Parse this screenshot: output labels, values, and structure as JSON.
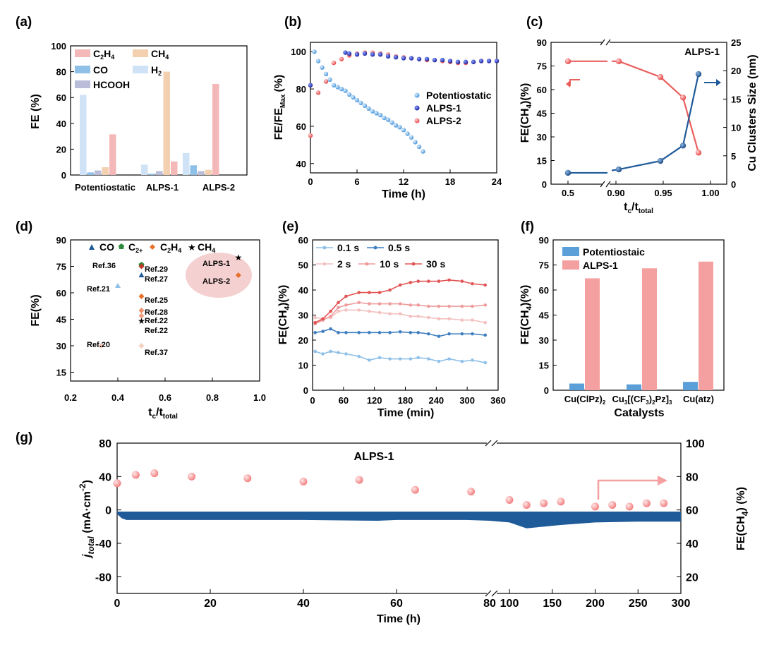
{
  "colors": {
    "pink": "#f5b8b8",
    "peach": "#f3d0b0",
    "blue": "#8fc0e8",
    "lightblue": "#cfe2f6",
    "lavender": "#b9bdd9",
    "red": "#e8605f",
    "darkblue": "#1f5a99",
    "midblue": "#6aa8df",
    "salmon": "#f5a0a0"
  },
  "panels": {
    "a": {
      "label": "(a)",
      "ylabel": "FE (%)",
      "yticks": [
        "0",
        "20",
        "40",
        "60",
        "80",
        "100"
      ],
      "categories": [
        "Potentiostatic",
        "ALPS-1",
        "ALPS-2"
      ],
      "legend": [
        "C",
        "H",
        "CH",
        "CO",
        "H",
        "HCOOH"
      ]
    },
    "b": {
      "label": "(b)",
      "ylabel": "FE/FE",
      "ylabel_sub": "Max",
      "ylabel_unit": "(%)",
      "xlabel": "Time (h)",
      "xticks": [
        "0",
        "6",
        "12",
        "18",
        "24"
      ],
      "yticks": [
        "40",
        "60",
        "80",
        "100"
      ],
      "legend": [
        "Potentiostatic",
        "ALPS-1",
        "ALPS-2"
      ]
    },
    "c": {
      "label": "(c)",
      "title": "ALPS-1",
      "ylabel": "FE(CH",
      "ylabel_end": ")(%)",
      "y2label": "Cu Clusters Size (nm)",
      "xlabel": "t",
      "xlabel_sub1": "c",
      "xlabel_mid": "/t",
      "xlabel_sub2": "total",
      "xticks": [
        "0.5",
        "0.90",
        "0.95",
        "1.00"
      ],
      "yticks": [
        "0",
        "15",
        "30",
        "45",
        "60",
        "75",
        "90"
      ],
      "y2ticks": [
        "0",
        "5",
        "10",
        "15",
        "20",
        "25"
      ]
    },
    "d": {
      "label": "(d)",
      "ylabel": "FE(%)",
      "xlabel": "t",
      "xlabel_sub1": "c",
      "xlabel_mid": "/t",
      "xlabel_sub2": "total",
      "xticks": [
        "0.2",
        "0.4",
        "0.6",
        "0.8",
        "1.0"
      ],
      "yticks": [
        "15",
        "30",
        "45",
        "60",
        "75",
        "90"
      ],
      "legend": [
        "CO",
        "C",
        "C",
        "H",
        "CH"
      ],
      "legend_subs": [
        "2+",
        "2",
        "4",
        "4"
      ],
      "refs": [
        "Ref.36",
        "Ref.29",
        "Ref.27",
        "Ref.21",
        "Ref.25",
        "Ref.28",
        "Ref.22",
        "Ref.22",
        "Ref.20",
        "Ref.37"
      ],
      "alps": [
        "ALPS-1",
        "ALPS-2"
      ]
    },
    "e": {
      "label": "(e)",
      "ylabel": "FE(CH",
      "ylabel_end": ")(%)",
      "xlabel": "Time (min)",
      "xticks": [
        "0",
        "60",
        "120",
        "180",
        "240",
        "300",
        "360"
      ],
      "yticks": [
        "0",
        "10",
        "20",
        "30",
        "40",
        "50",
        "60"
      ],
      "legend": [
        "0.1 s",
        "0.5 s",
        "2 s",
        "10 s",
        "30 s"
      ]
    },
    "f": {
      "label": "(f)",
      "ylabel": "FE(CH",
      "ylabel_end": ")(%)",
      "xlabel": "Catalysts",
      "yticks": [
        "0",
        "15",
        "30",
        "45",
        "60",
        "75",
        "90"
      ],
      "legend": [
        "Potentiostaic",
        "ALPS-1"
      ],
      "cat1": "Cu(ClPz)",
      "cat1_sub": "2",
      "cat2a": "Cu",
      "cat2_sub1": "3",
      "cat2b": "[(CF",
      "cat2_sub2": "3",
      "cat2c": ")",
      "cat2_sub3": "2",
      "cat2d": "Pz]",
      "cat2_sub4": "3",
      "cat3": "Cu(atz)"
    },
    "g": {
      "label": "(g)",
      "title": "ALPS-1",
      "ylabel": "j",
      "ylabel_sub": "total",
      "ylabel_unit": " (mA·cm",
      "ylabel_sup": "-2",
      "ylabel_close": ")",
      "y2label": "FE(CH",
      "y2label_end": ") (%)",
      "xlabel": "Time (h)",
      "xticks": [
        "0",
        "20",
        "40",
        "60",
        "80",
        "100",
        "150",
        "200",
        "250",
        "300"
      ],
      "yticks": [
        "-80",
        "-40",
        "0",
        "40",
        "80"
      ],
      "y2ticks": [
        "20",
        "40",
        "60",
        "80",
        "100"
      ]
    }
  },
  "chart_data": [
    {
      "type": "bar",
      "id": "a",
      "title": "",
      "ylabel": "FE (%)",
      "ylim": [
        0,
        100
      ],
      "categories": [
        "Potentiostatic",
        "ALPS-1",
        "ALPS-2"
      ],
      "series": [
        {
          "name": "H2",
          "values": [
            62,
            8,
            17
          ]
        },
        {
          "name": "CO",
          "values": [
            2,
            1,
            7.5
          ]
        },
        {
          "name": "HCOOH",
          "values": [
            3.5,
            3,
            3
          ]
        },
        {
          "name": "CH4",
          "values": [
            6,
            80,
            4
          ]
        },
        {
          "name": "C2H4",
          "values": [
            31.5,
            10.5,
            70.5
          ]
        }
      ]
    },
    {
      "type": "scatter",
      "id": "b",
      "xlabel": "Time (h)",
      "ylabel": "FE/FE_Max (%)",
      "xlim": [
        0,
        24
      ],
      "ylim": [
        35,
        105
      ],
      "series": [
        {
          "name": "Potentiostatic",
          "x": [
            0.5,
            1,
            1.5,
            2,
            2.5,
            3,
            3.5,
            4,
            4.5,
            5,
            5.5,
            6,
            6.5,
            7,
            7.5,
            8,
            8.5,
            9,
            9.5,
            10,
            10.5,
            11,
            11.5,
            12,
            12.5,
            13,
            13.5,
            14,
            14.5
          ],
          "y": [
            100,
            95,
            91.5,
            88,
            85,
            82,
            81,
            80,
            79,
            77,
            75.5,
            74,
            72.5,
            71,
            69.5,
            68,
            67,
            66,
            64.5,
            63.5,
            62,
            60.5,
            59.5,
            58,
            56,
            54,
            51.5,
            49,
            46.5
          ]
        },
        {
          "name": "ALPS-1",
          "x": [
            0,
            4.5,
            5,
            6,
            7,
            8,
            9,
            10,
            11,
            12,
            13,
            14,
            15,
            16,
            17,
            18,
            19,
            20,
            21,
            22,
            23,
            24
          ],
          "y": [
            82,
            99.5,
            99,
            98.5,
            99,
            98.5,
            98.5,
            97.5,
            97,
            96.5,
            96.5,
            96,
            96,
            95.5,
            95.5,
            95,
            94.5,
            94.5,
            94.5,
            95,
            95,
            95
          ]
        },
        {
          "name": "ALPS-2",
          "x": [
            0,
            1,
            2,
            3,
            4,
            5,
            6,
            7,
            8,
            9,
            10,
            11,
            12,
            13,
            14,
            15,
            16,
            17,
            18,
            19,
            20,
            21,
            22,
            23,
            24
          ],
          "y": [
            55,
            78,
            84,
            94,
            96,
            98,
            99,
            99.5,
            99.5,
            99,
            98.5,
            97.5,
            97,
            96.5,
            96,
            95.5,
            95.5,
            95,
            94.5,
            94,
            94,
            94.5,
            95,
            95,
            95
          ]
        }
      ]
    },
    {
      "type": "line",
      "id": "c",
      "title": "ALPS-1",
      "xlabel": "tc/ttotal",
      "ylabel": "FE(CH4)(%)",
      "y2label": "Cu Clusters Size (nm)",
      "x_categories": [
        "0.5",
        "0.90",
        "0.95",
        "1.00"
      ],
      "ylim": [
        0,
        90
      ],
      "y2lim": [
        0,
        25
      ],
      "series": [
        {
          "name": "FE(CH4)",
          "x": [
            0.5,
            0.909,
            0.95,
            0.975,
            0.99
          ],
          "y": [
            78,
            78,
            68,
            55,
            20
          ]
        },
        {
          "name": "Cu Clusters Size",
          "axis": "right",
          "x": [
            0.5,
            0.909,
            0.95,
            0.975,
            0.99
          ],
          "y": [
            2,
            2.6,
            4.1,
            6.8,
            19.4
          ]
        }
      ]
    },
    {
      "type": "scatter",
      "id": "d",
      "xlabel": "tc/ttotal",
      "ylabel": "FE(%)",
      "xlim": [
        0.2,
        1.0
      ],
      "ylim": [
        10,
        90
      ],
      "series": [
        {
          "name": "CO",
          "x": [
            0.5,
            0.4
          ],
          "y": [
            70,
            64
          ]
        },
        {
          "name": "C2+",
          "x": [
            0.5
          ],
          "y": [
            76
          ]
        },
        {
          "name": "C2H4",
          "x": [
            0.5,
            0.5,
            0.5,
            0.5,
            0.33,
            0.5,
            0.91
          ],
          "y": [
            75,
            58,
            50,
            47,
            30,
            30,
            70
          ]
        },
        {
          "name": "CH4",
          "x": [
            0.5,
            0.91
          ],
          "y": [
            44,
            80
          ]
        }
      ]
    },
    {
      "type": "line",
      "id": "e",
      "xlabel": "Time (min)",
      "ylabel": "FE(CH4)(%)",
      "xlim": [
        0,
        360
      ],
      "ylim": [
        0,
        60
      ],
      "x": [
        5,
        20,
        35,
        50,
        65,
        90,
        110,
        130,
        150,
        170,
        190,
        205,
        225,
        245,
        265,
        290,
        310,
        335
      ],
      "series": [
        {
          "name": "0.1 s",
          "values": [
            15.5,
            14.5,
            15.5,
            15,
            14.5,
            13.5,
            12,
            13,
            12.5,
            12.5,
            12.5,
            13,
            12.5,
            11.5,
            12.5,
            11.5,
            12,
            11
          ]
        },
        {
          "name": "0.5 s",
          "values": [
            23,
            23.5,
            24.5,
            23,
            23,
            23,
            23,
            23,
            23,
            23.3,
            23,
            23,
            22.5,
            21.5,
            22.5,
            22.5,
            22.5,
            22
          ]
        },
        {
          "name": "2 s",
          "values": [
            29,
            28.5,
            29,
            31.5,
            32,
            32,
            31.5,
            31,
            30.5,
            30.5,
            29.5,
            29.5,
            29,
            28.5,
            28.5,
            28,
            28,
            27
          ]
        },
        {
          "name": "10 s",
          "values": [
            26.5,
            28,
            29.5,
            33,
            34,
            35,
            34.5,
            34.5,
            34.5,
            34.5,
            34,
            34,
            33.5,
            33.5,
            33.5,
            33.5,
            33.5,
            34
          ]
        },
        {
          "name": "30 s",
          "values": [
            27,
            28.5,
            31.5,
            35,
            37.5,
            39,
            39,
            39,
            40,
            42,
            43,
            43.5,
            43.5,
            43.5,
            44,
            43.5,
            42.5,
            42
          ]
        }
      ]
    },
    {
      "type": "bar",
      "id": "f",
      "xlabel": "Catalysts",
      "ylabel": "FE(CH4)(%)",
      "ylim": [
        0,
        90
      ],
      "categories": [
        "Cu(ClPz)2",
        "Cu3[(CF3)2Pz]3",
        "Cu(atz)"
      ],
      "series": [
        {
          "name": "Potentiostaic",
          "values": [
            4,
            3.5,
            5
          ]
        },
        {
          "name": "ALPS-1",
          "values": [
            67,
            73,
            77
          ]
        }
      ]
    },
    {
      "type": "line",
      "id": "g",
      "title": "ALPS-1",
      "xlabel": "Time (h)",
      "ylabel": "j_total (mA·cm-2)",
      "y2label": "FE(CH4) (%)",
      "ylim": [
        -100,
        80
      ],
      "y2lim": [
        10,
        100
      ],
      "series": [
        {
          "name": "FE(CH4)",
          "axis": "right",
          "x": [
            0,
            4,
            8,
            16,
            28,
            40,
            52,
            64,
            76,
            100,
            120,
            140,
            160,
            200,
            220,
            240,
            260,
            280
          ],
          "y": [
            76,
            81,
            82,
            80,
            79,
            77,
            78,
            72,
            71,
            66,
            63,
            64,
            65,
            62,
            63,
            62,
            64,
            64
          ]
        },
        {
          "name": "j_total",
          "axis": "left",
          "x": [
            0,
            1,
            2,
            5,
            10,
            20,
            40,
            56,
            60,
            75,
            80,
            100,
            120,
            140,
            160,
            200,
            250,
            300
          ],
          "y": [
            -5,
            -10,
            -12,
            -12,
            -12,
            -12,
            -12,
            -13,
            -12,
            -12,
            -13,
            -15,
            -22,
            -20,
            -18,
            -15,
            -14,
            -14
          ]
        }
      ]
    }
  ]
}
